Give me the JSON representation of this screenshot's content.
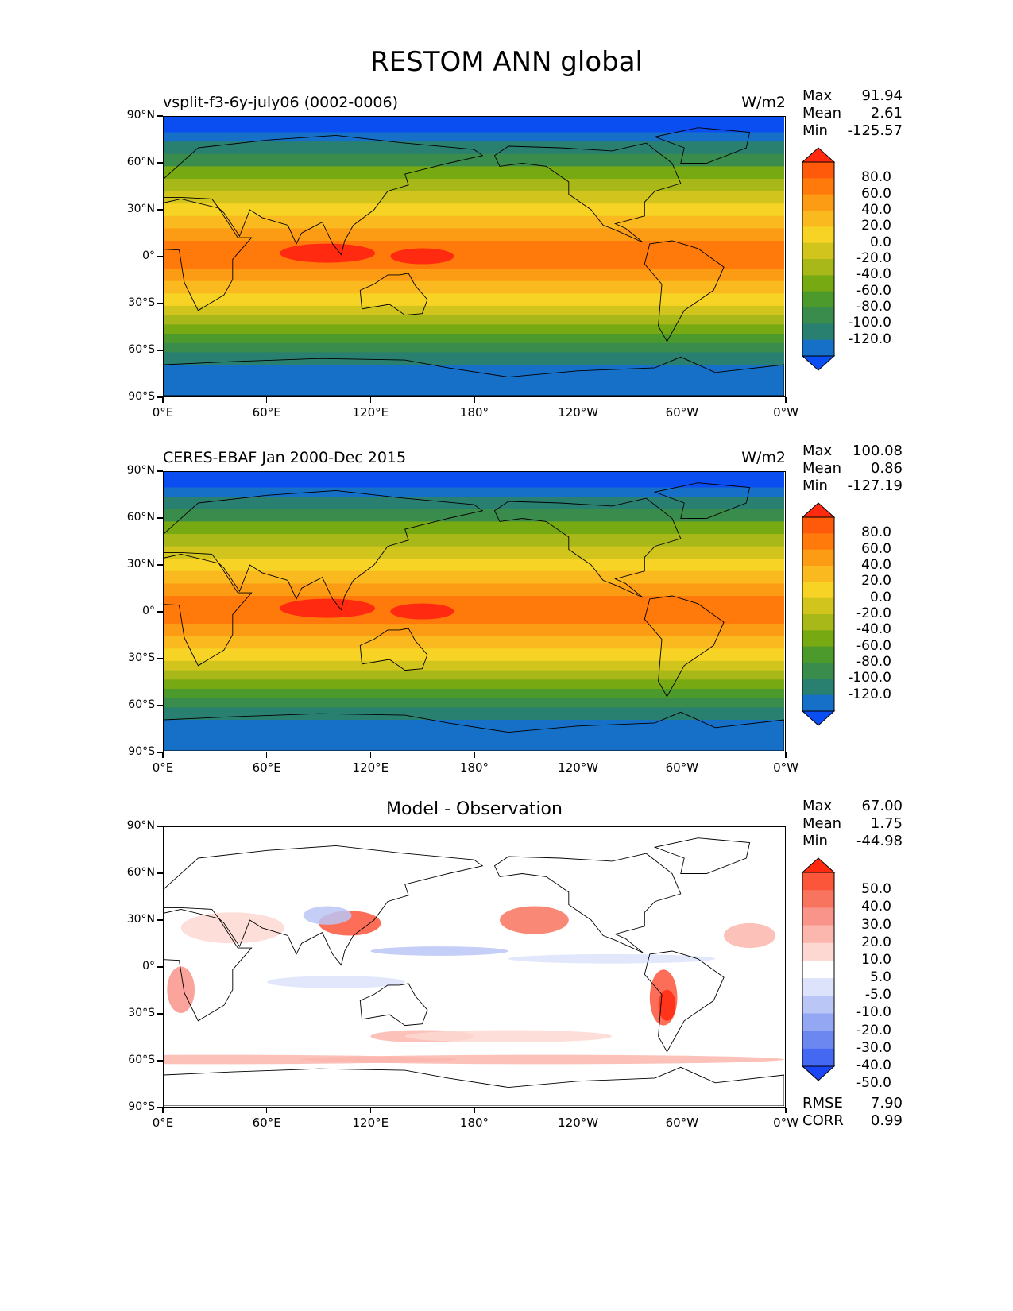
{
  "title": "RESTOM ANN global",
  "x_ticks": [
    "0°E",
    "60°E",
    "120°E",
    "180°",
    "120°W",
    "60°W",
    "0°W"
  ],
  "y_ticks": [
    "90°N",
    "60°N",
    "30°N",
    "0°",
    "30°S",
    "60°S",
    "90°S"
  ],
  "panels": [
    {
      "title": "vsplit-f3-6y-july06 (0002-0006)",
      "units": "W/m2",
      "stats": [
        {
          "label": "Max",
          "value": "91.94"
        },
        {
          "label": "Mean",
          "value": "2.61"
        },
        {
          "label": "Min",
          "value": "-125.57"
        }
      ],
      "colorbar_labels": [
        "80.0",
        "60.0",
        "40.0",
        "20.0",
        "0.0",
        "-20.0",
        "-40.0",
        "-60.0",
        "-80.0",
        "-100.0",
        "-120.0"
      ],
      "colorbar_colors": [
        "#ff2a10",
        "#ff5a0a",
        "#ff7a0a",
        "#fc9c14",
        "#fab91f",
        "#f6d324",
        "#d1c41d",
        "#a9b819",
        "#77a913",
        "#4c9a2c",
        "#3a8c4c",
        "#2a8070",
        "#1670c8",
        "#0a4df0"
      ]
    },
    {
      "title": "CERES-EBAF Jan 2000-Dec 2015",
      "units": "W/m2",
      "stats": [
        {
          "label": "Max",
          "value": "100.08"
        },
        {
          "label": "Mean",
          "value": "0.86"
        },
        {
          "label": "Min",
          "value": "-127.19"
        }
      ],
      "colorbar_labels": [
        "80.0",
        "60.0",
        "40.0",
        "20.0",
        "0.0",
        "-20.0",
        "-40.0",
        "-60.0",
        "-80.0",
        "-100.0",
        "-120.0"
      ],
      "colorbar_colors": [
        "#ff2a10",
        "#ff5a0a",
        "#ff7a0a",
        "#fc9c14",
        "#fab91f",
        "#f6d324",
        "#d1c41d",
        "#a9b819",
        "#77a913",
        "#4c9a2c",
        "#3a8c4c",
        "#2a8070",
        "#1670c8",
        "#0a4df0"
      ]
    },
    {
      "title": "Model - Observation",
      "units": "",
      "stats": [
        {
          "label": "Max",
          "value": "67.00"
        },
        {
          "label": "Mean",
          "value": "1.75"
        },
        {
          "label": "Min",
          "value": "-44.98"
        }
      ],
      "colorbar_labels": [
        "50.0",
        "40.0",
        "30.0",
        "20.0",
        "10.0",
        "5.0",
        "-5.0",
        "-10.0",
        "-20.0",
        "-30.0",
        "-40.0",
        "-50.0"
      ],
      "colorbar_colors": [
        "#ff2a10",
        "#fb553a",
        "#f8745e",
        "#f9948a",
        "#fbb6ad",
        "#fdd8d2",
        "#ffffff",
        "#dde3fb",
        "#bac6f6",
        "#94a7f3",
        "#6d87f1",
        "#4468f1",
        "#1b45f3"
      ],
      "extra_stats": [
        {
          "label": "RMSE",
          "value": "7.90"
        },
        {
          "label": "CORR",
          "value": "0.99"
        }
      ]
    }
  ]
}
